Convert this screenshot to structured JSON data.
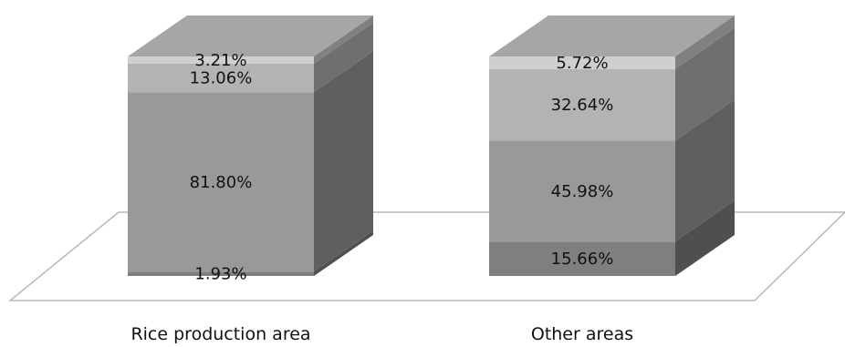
{
  "chart_data": {
    "type": "bar",
    "stacked": true,
    "style": "3d-stacked-percent-column",
    "categories": [
      "Rice production area",
      "Other areas"
    ],
    "series": [
      {
        "values": [
          1.93,
          15.66
        ],
        "color": "#7f7f7f"
      },
      {
        "values": [
          81.8,
          45.98
        ],
        "color": "#999999"
      },
      {
        "values": [
          13.06,
          32.64
        ],
        "color": "#b3b3b3"
      },
      {
        "values": [
          3.21,
          5.72
        ],
        "color": "#cfcfcf"
      }
    ],
    "data_labels": [
      [
        "1.93%",
        "81.80%",
        "13.06%",
        "3.21%"
      ],
      [
        "15.66%",
        "45.98%",
        "32.64%",
        "5.72%"
      ]
    ],
    "ylim": [
      0,
      100
    ],
    "grid": false,
    "legend": "none",
    "top_color": "#a6a6a6",
    "side_darken": 0.62,
    "floor_color": "#ffffff",
    "floor_stroke": "#b8b8b8"
  }
}
